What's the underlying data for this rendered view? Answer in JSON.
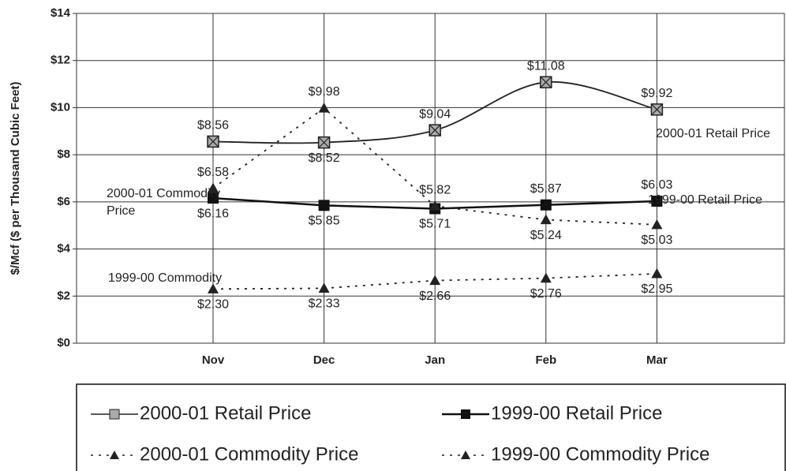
{
  "chart_data": {
    "type": "line",
    "y_label": "$/Mcf ($ per Thousand Cubic Feet)",
    "categories": [
      "Nov",
      "Dec",
      "Jan",
      "Feb",
      "Mar"
    ],
    "ylim": [
      0,
      14
    ],
    "yticks": [
      {
        "value": 0,
        "label": "$0"
      },
      {
        "value": 2,
        "label": "$2"
      },
      {
        "value": 4,
        "label": "$4"
      },
      {
        "value": 6,
        "label": "$6"
      },
      {
        "value": 8,
        "label": "$8"
      },
      {
        "value": 10,
        "label": "$10"
      },
      {
        "value": 12,
        "label": "$12"
      },
      {
        "value": 14,
        "label": "$14"
      }
    ],
    "grid": true,
    "series": [
      {
        "name": "2000-01 Retail Price",
        "color": "#222222",
        "marker": "square-cross",
        "dash": "solid",
        "smooth": true,
        "values": [
          8.56,
          8.52,
          9.04,
          11.08,
          9.92
        ],
        "value_labels": [
          "$8.56",
          "$8.52",
          "$9.04",
          "$11.08",
          "$9.92"
        ]
      },
      {
        "name": "1999-00 Retail Price",
        "color": "#111111",
        "marker": "square",
        "dash": "solid",
        "smooth": false,
        "values": [
          6.16,
          5.85,
          5.71,
          5.87,
          6.03
        ],
        "value_labels": [
          "$6.16",
          "$5.85",
          "$5.71",
          "$5.87",
          "$6.03"
        ]
      },
      {
        "name": "2000-01 Commodity Price",
        "color": "#222222",
        "marker": "triangle",
        "dash": "dotted",
        "smooth": false,
        "values": [
          6.58,
          9.98,
          5.82,
          5.24,
          5.03
        ],
        "value_labels": [
          "$6.58",
          "$9.98",
          "$5.82",
          "$5.24",
          "$5.03"
        ]
      },
      {
        "name": "1999-00 Commodity Price",
        "color": "#222222",
        "marker": "triangle",
        "dash": "dotted",
        "smooth": false,
        "values": [
          2.3,
          2.33,
          2.66,
          2.76,
          2.95
        ],
        "value_labels": [
          "$2.30",
          "$2.33",
          "$2.66",
          "$2.76",
          "$2.95"
        ]
      }
    ],
    "annotations": [
      "2000-01 Retail Price",
      "1999-00 Retail Price",
      "2000-01 Commodity",
      "Price",
      "1999-00 Commodity"
    ]
  }
}
